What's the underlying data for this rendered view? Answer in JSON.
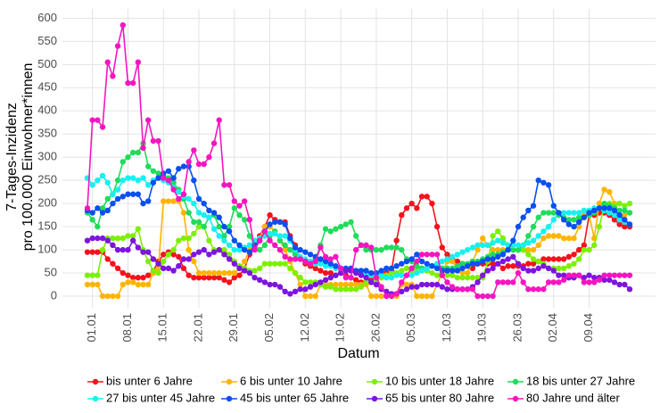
{
  "chart_data": {
    "type": "line",
    "x_label": "Datum",
    "y_label": [
      "7-Tages-Inzidenz",
      "pro 100.000 Einwohner*innen"
    ],
    "ylim": [
      -25,
      620
    ],
    "yticks": [
      0,
      50,
      100,
      150,
      200,
      250,
      300,
      350,
      400,
      450,
      500,
      550,
      600
    ],
    "grid": true,
    "legend": "bottom",
    "categories": [
      null,
      "01.01",
      null,
      null,
      null,
      null,
      null,
      null,
      "08.01",
      null,
      null,
      null,
      null,
      null,
      null,
      "15.01",
      null,
      null,
      null,
      null,
      null,
      null,
      "22.01",
      null,
      null,
      null,
      null,
      null,
      null,
      "29.01",
      null,
      null,
      null,
      null,
      null,
      null,
      "05.02",
      null,
      null,
      null,
      null,
      null,
      null,
      "12.02",
      null,
      null,
      null,
      null,
      null,
      null,
      "19.02",
      null,
      null,
      null,
      null,
      null,
      null,
      "26.02",
      null,
      null,
      null,
      null,
      null,
      null,
      "05.03",
      null,
      null,
      null,
      null,
      null,
      null,
      "12.03",
      null,
      null,
      null,
      null,
      null,
      null,
      "19.03",
      null,
      null,
      null,
      null,
      null,
      null,
      "26.03",
      null,
      null,
      null,
      null,
      null,
      null,
      "02.04",
      null,
      null,
      null,
      null,
      null,
      null,
      "09.04",
      null,
      null,
      null,
      null,
      null,
      null,
      null,
      null
    ],
    "series": [
      {
        "name": "bis unter 6 Jahre",
        "color": "#f5121c",
        "values": [
          95,
          95,
          95,
          95,
          80,
          70,
          60,
          50,
          45,
          40,
          40,
          40,
          45,
          55,
          75,
          90,
          95,
          90,
          85,
          60,
          45,
          40,
          40,
          40,
          40,
          40,
          40,
          35,
          30,
          40,
          45,
          60,
          90,
          110,
          130,
          150,
          175,
          165,
          160,
          160,
          130,
          110,
          80,
          70,
          65,
          60,
          55,
          50,
          50,
          45,
          50,
          45,
          40,
          35,
          30,
          30,
          35,
          40,
          45,
          50,
          55,
          120,
          175,
          190,
          200,
          190,
          215,
          215,
          200,
          150,
          105,
          90,
          80,
          75,
          70,
          65,
          60,
          70,
          70,
          70,
          70,
          70,
          60,
          65,
          65,
          65,
          65,
          70,
          70,
          75,
          80,
          80,
          80,
          80,
          80,
          85,
          90,
          100,
          110,
          175,
          175,
          180,
          180,
          175,
          165,
          155,
          150,
          150
        ]
      },
      {
        "name": "6 bis unter 10 Jahre",
        "color": "#ffb400",
        "values": [
          25,
          25,
          25,
          0,
          0,
          0,
          0,
          25,
          30,
          30,
          25,
          25,
          25,
          50,
          60,
          205,
          205,
          205,
          205,
          180,
          100,
          75,
          50,
          50,
          50,
          50,
          50,
          50,
          50,
          50,
          60,
          75,
          100,
          110,
          125,
          150,
          150,
          140,
          120,
          100,
          75,
          50,
          25,
          0,
          0,
          0,
          25,
          25,
          25,
          25,
          25,
          25,
          25,
          25,
          25,
          25,
          0,
          0,
          0,
          0,
          0,
          0,
          25,
          25,
          25,
          0,
          0,
          0,
          0,
          25,
          50,
          75,
          75,
          60,
          50,
          50,
          75,
          100,
          125,
          110,
          100,
          100,
          100,
          100,
          100,
          100,
          100,
          100,
          100,
          110,
          125,
          130,
          130,
          130,
          125,
          125,
          125,
          150,
          175,
          175,
          125,
          200,
          230,
          225,
          200,
          175,
          175,
          180
        ]
      },
      {
        "name": "10 bis unter 18 Jahre",
        "color": "#7cf000",
        "values": [
          45,
          45,
          45,
          100,
          125,
          125,
          125,
          125,
          130,
          130,
          145,
          100,
          75,
          55,
          50,
          75,
          90,
          100,
          120,
          125,
          125,
          135,
          150,
          150,
          120,
          100,
          100,
          100,
          90,
          75,
          65,
          60,
          55,
          55,
          60,
          70,
          70,
          70,
          70,
          70,
          60,
          50,
          40,
          30,
          30,
          30,
          25,
          20,
          20,
          15,
          15,
          15,
          15,
          15,
          20,
          30,
          30,
          35,
          40,
          45,
          50,
          50,
          55,
          60,
          55,
          60,
          60,
          55,
          50,
          45,
          45,
          45,
          45,
          40,
          40,
          40,
          40,
          40,
          40,
          75,
          130,
          140,
          125,
          110,
          100,
          100,
          100,
          90,
          80,
          75,
          70,
          60,
          60,
          60,
          60,
          65,
          70,
          80,
          100,
          100,
          110,
          150,
          195,
          200,
          195,
          200,
          195,
          200
        ]
      },
      {
        "name": "18 bis unter 27 Jahre",
        "color": "#1fdc5a",
        "values": [
          180,
          165,
          150,
          190,
          210,
          220,
          250,
          290,
          300,
          310,
          310,
          330,
          280,
          270,
          265,
          260,
          255,
          245,
          230,
          210,
          180,
          160,
          160,
          150,
          170,
          175,
          150,
          130,
          150,
          190,
          175,
          165,
          130,
          110,
          100,
          110,
          130,
          140,
          120,
          110,
          100,
          90,
          80,
          75,
          70,
          80,
          110,
          145,
          140,
          145,
          150,
          155,
          160,
          130,
          110,
          100,
          100,
          100,
          100,
          105,
          105,
          105,
          100,
          80,
          75,
          65,
          60,
          60,
          65,
          65,
          60,
          60,
          60,
          65,
          70,
          70,
          75,
          75,
          80,
          85,
          90,
          90,
          95,
          100,
          100,
          100,
          110,
          130,
          150,
          170,
          180,
          180,
          180,
          175,
          170,
          165,
          165,
          170,
          170,
          175,
          180,
          190,
          200,
          195,
          190,
          185,
          185,
          180
        ]
      },
      {
        "name": "27 bis unter 45 Jahre",
        "color": "#16f0f0",
        "values": [
          255,
          240,
          250,
          260,
          245,
          220,
          230,
          250,
          255,
          255,
          250,
          255,
          240,
          250,
          255,
          250,
          245,
          235,
          225,
          215,
          210,
          200,
          180,
          175,
          170,
          145,
          130,
          120,
          110,
          100,
          100,
          105,
          110,
          120,
          125,
          130,
          135,
          135,
          130,
          130,
          120,
          100,
          85,
          80,
          75,
          70,
          70,
          65,
          65,
          60,
          60,
          55,
          55,
          50,
          50,
          48,
          45,
          45,
          45,
          40,
          40,
          45,
          45,
          45,
          45,
          50,
          55,
          60,
          65,
          70,
          75,
          80,
          85,
          90,
          95,
          100,
          105,
          110,
          110,
          110,
          115,
          120,
          115,
          110,
          110,
          110,
          110,
          115,
          120,
          130,
          140,
          150,
          165,
          180,
          180,
          180,
          180,
          180,
          185,
          185,
          190,
          190,
          185,
          180,
          175,
          165,
          160,
          155
        ]
      },
      {
        "name": "45 bis unter 65 Jahre",
        "color": "#0a4ff0",
        "values": [
          185,
          180,
          190,
          180,
          185,
          200,
          210,
          215,
          220,
          220,
          220,
          200,
          205,
          245,
          255,
          265,
          270,
          255,
          275,
          280,
          280,
          250,
          210,
          200,
          185,
          180,
          170,
          150,
          140,
          120,
          110,
          100,
          95,
          110,
          120,
          140,
          155,
          160,
          160,
          155,
          125,
          105,
          100,
          95,
          90,
          85,
          80,
          75,
          70,
          65,
          60,
          60,
          60,
          55,
          55,
          55,
          50,
          50,
          55,
          60,
          60,
          65,
          70,
          75,
          80,
          90,
          75,
          70,
          65,
          60,
          55,
          55,
          55,
          55,
          60,
          65,
          70,
          70,
          75,
          80,
          80,
          85,
          90,
          100,
          120,
          150,
          170,
          185,
          195,
          250,
          245,
          240,
          195,
          180,
          165,
          155,
          150,
          160,
          170,
          180,
          185,
          190,
          190,
          190,
          185,
          175,
          165,
          155
        ]
      },
      {
        "name": "65 bis unter 80 Jahre",
        "color": "#7d14e0",
        "values": [
          120,
          125,
          125,
          125,
          120,
          110,
          100,
          100,
          100,
          120,
          105,
          95,
          95,
          80,
          70,
          60,
          60,
          55,
          65,
          80,
          80,
          90,
          95,
          100,
          90,
          95,
          100,
          90,
          80,
          70,
          60,
          55,
          50,
          40,
          35,
          30,
          25,
          25,
          20,
          10,
          5,
          10,
          15,
          15,
          20,
          25,
          30,
          35,
          40,
          45,
          50,
          55,
          55,
          50,
          45,
          40,
          30,
          25,
          15,
          10,
          5,
          5,
          10,
          15,
          20,
          20,
          25,
          25,
          25,
          25,
          20,
          15,
          15,
          15,
          15,
          15,
          20,
          30,
          45,
          55,
          60,
          70,
          75,
          80,
          85,
          70,
          60,
          55,
          55,
          60,
          65,
          60,
          55,
          45,
          45,
          40,
          40,
          45,
          40,
          45,
          40,
          40,
          35,
          35,
          30,
          25,
          25,
          15
        ]
      },
      {
        "name": "80 Jahre und älter",
        "color": "#f515c0",
        "values": [
          190,
          380,
          380,
          365,
          505,
          475,
          540,
          585,
          460,
          460,
          505,
          320,
          380,
          335,
          335,
          255,
          250,
          230,
          210,
          220,
          290,
          315,
          285,
          285,
          300,
          330,
          380,
          240,
          240,
          205,
          195,
          205,
          165,
          100,
          120,
          140,
          120,
          110,
          100,
          85,
          80,
          80,
          80,
          75,
          70,
          75,
          105,
          85,
          80,
          85,
          60,
          40,
          40,
          100,
          110,
          110,
          105,
          40,
          20,
          0,
          0,
          5,
          30,
          45,
          60,
          75,
          90,
          90,
          90,
          90,
          45,
          30,
          20,
          15,
          15,
          15,
          15,
          0,
          0,
          0,
          0,
          30,
          30,
          30,
          30,
          50,
          30,
          15,
          15,
          15,
          15,
          30,
          30,
          30,
          35,
          45,
          45,
          45,
          30,
          30,
          30,
          35,
          45,
          45,
          45,
          45,
          45,
          45
        ]
      }
    ]
  }
}
